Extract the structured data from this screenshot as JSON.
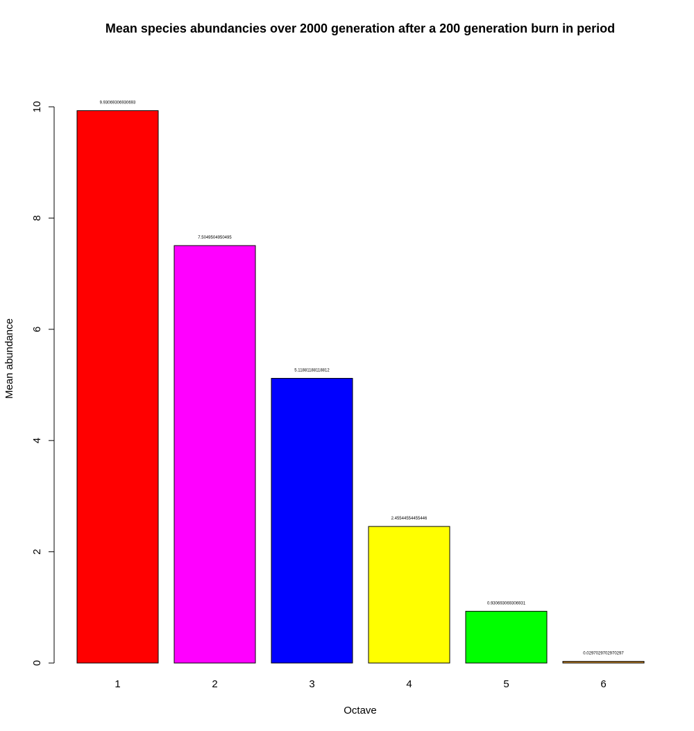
{
  "chart_data": {
    "type": "bar",
    "title": "Mean species abundancies over 2000 generation after a 200 generation burn in period",
    "xlabel": "Octave",
    "ylabel": "Mean abundance",
    "categories": [
      "1",
      "2",
      "3",
      "4",
      "5",
      "6"
    ],
    "values": [
      9.93069306930693,
      7.5049504950495,
      5.11881188118812,
      2.45544554455446,
      0.930693069306931,
      0.0297029702970297
    ],
    "data_labels": [
      "9.93069306930693",
      "7.5049504950495",
      "5.11881188118812",
      "2.45544554455446",
      "0.930693069306931",
      "0.0297029702970297"
    ],
    "colors": [
      "#ff0000",
      "#ff00ff",
      "#0000ff",
      "#ffff00",
      "#00ff00",
      "#cd8a2a"
    ],
    "ylim": [
      0,
      10
    ],
    "yticks": [
      0,
      2,
      4,
      6,
      8,
      10
    ],
    "ytick_labels": [
      "0",
      "2",
      "4",
      "6",
      "8",
      "10"
    ],
    "grid": false,
    "legend": "none"
  }
}
